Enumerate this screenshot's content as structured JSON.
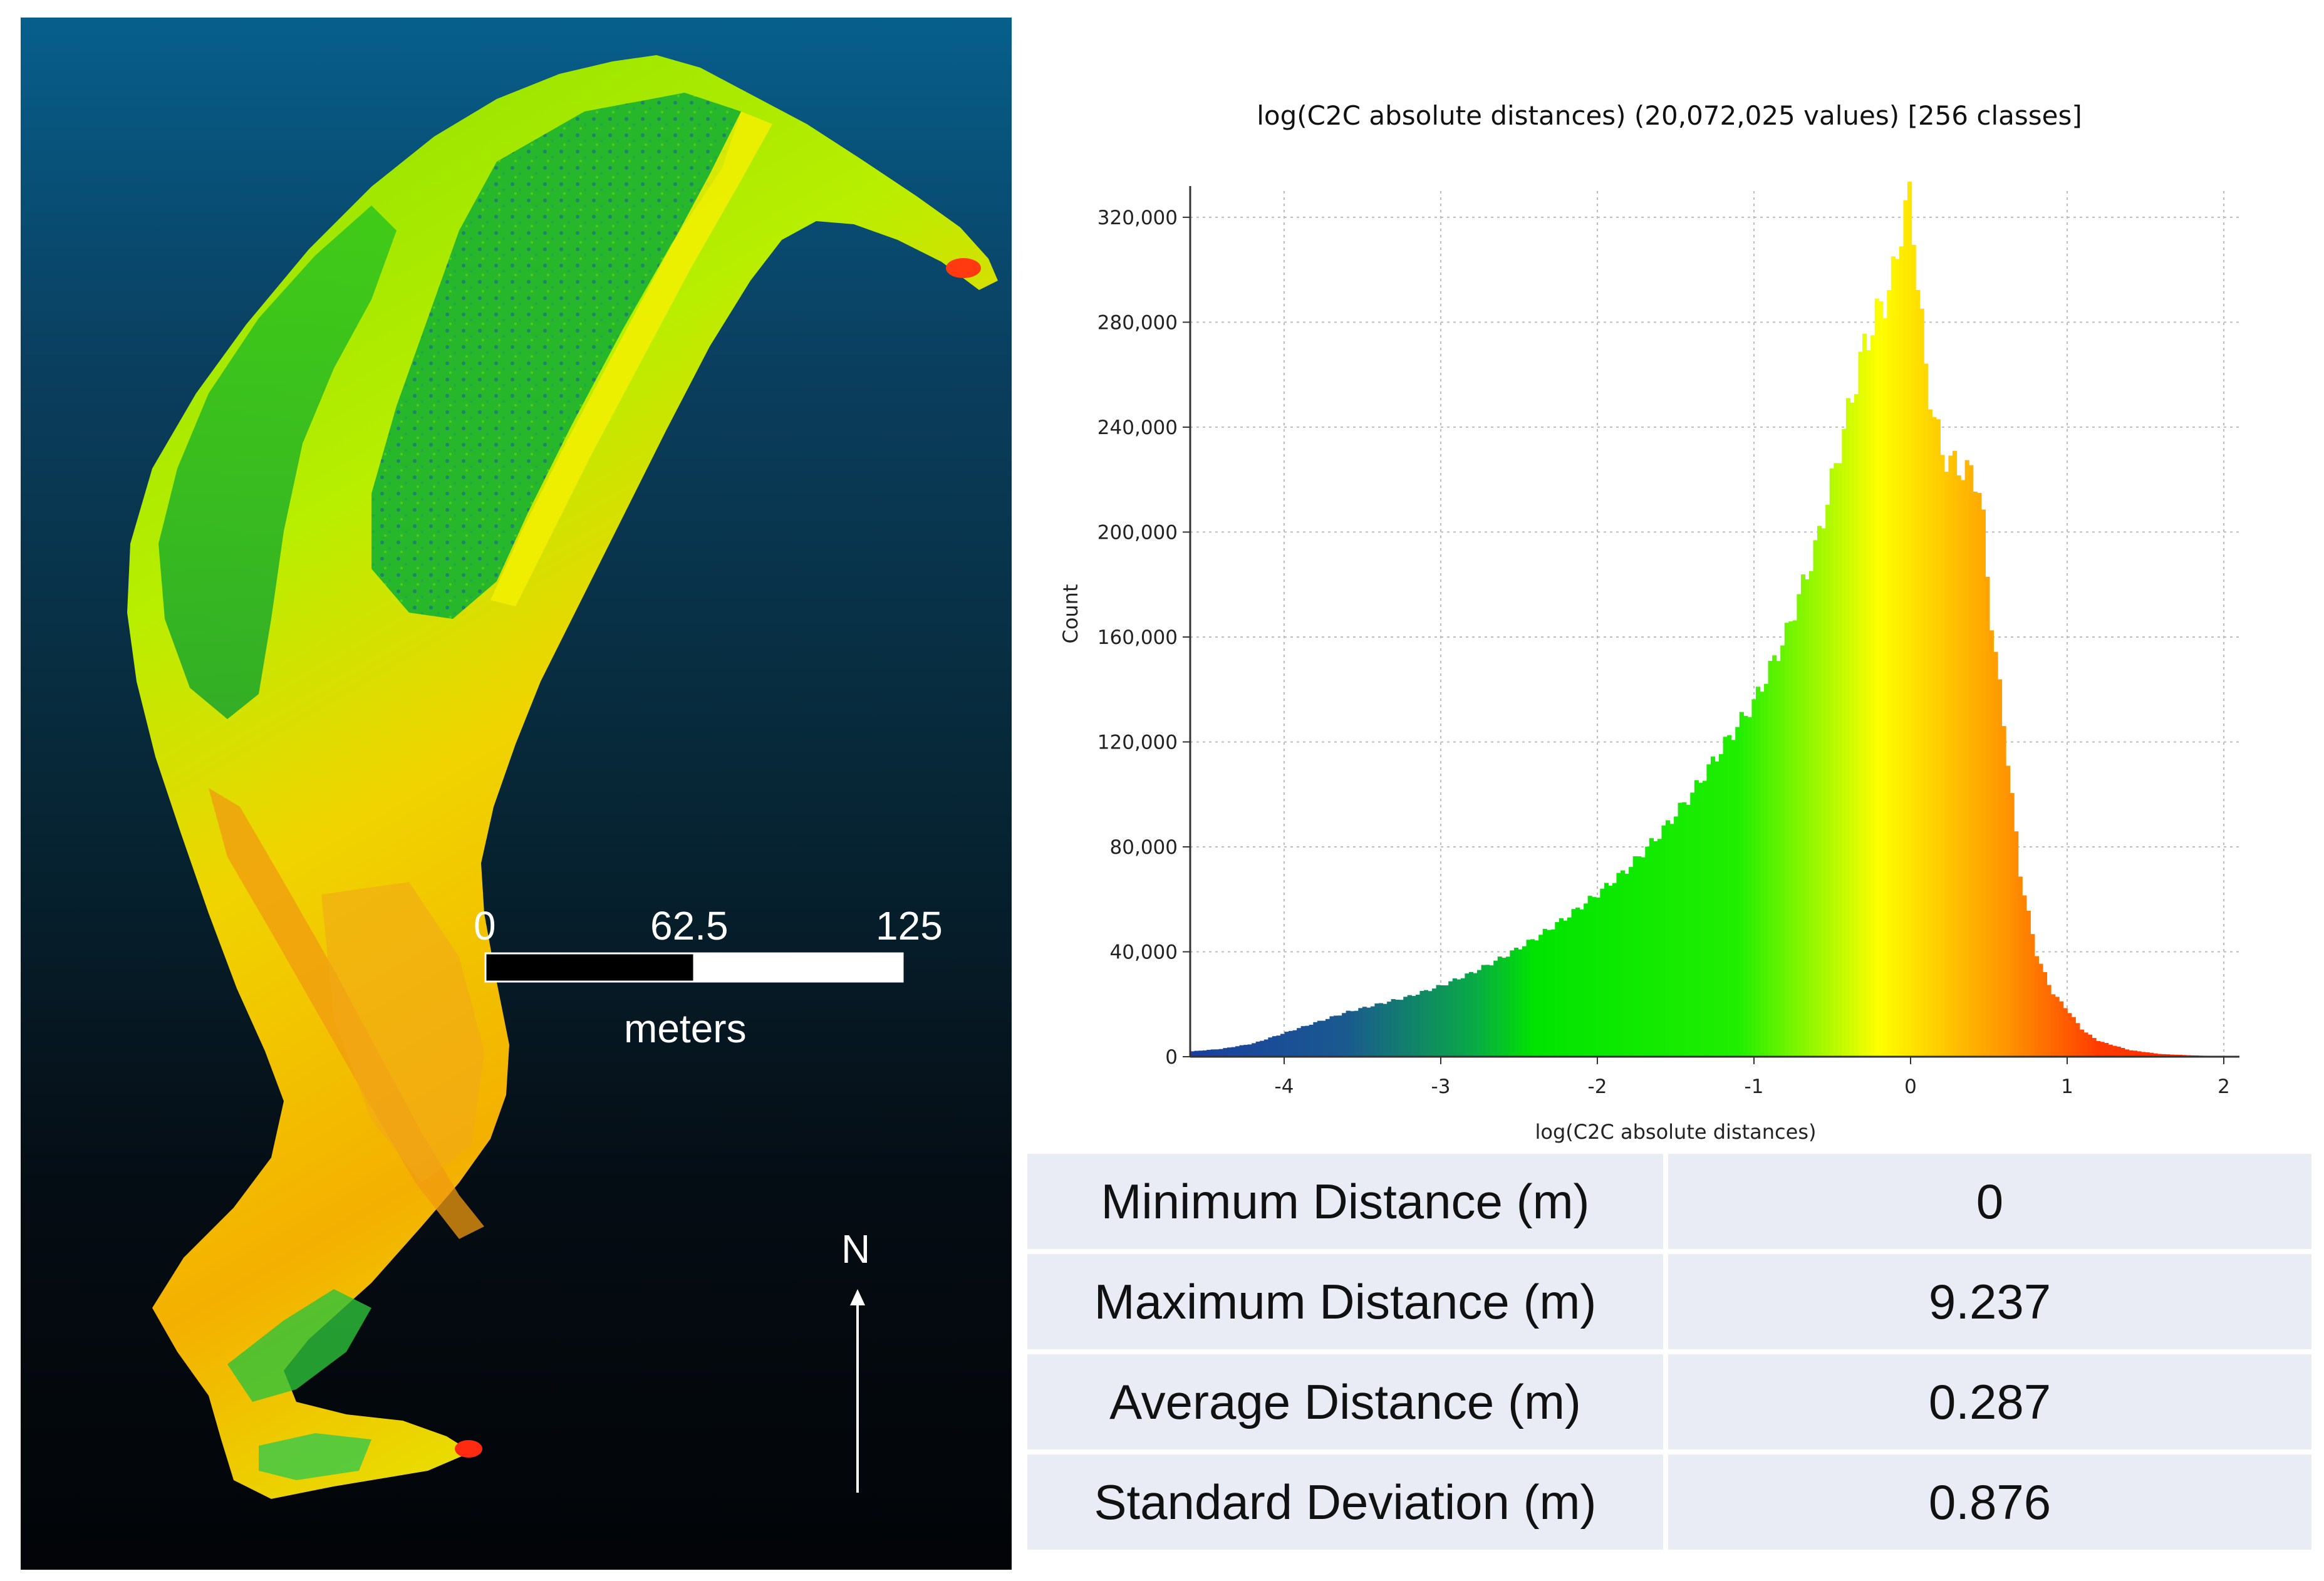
{
  "map": {
    "scale_bar": {
      "start": "0",
      "mid": "62.5",
      "end": "125",
      "unit": "meters"
    },
    "north_label": "N",
    "colors": {
      "background_top": "#075f8c",
      "background_bottom": "#020407"
    }
  },
  "chart_data": {
    "type": "bar",
    "title": "log(C2C absolute distances) (20,072,025 values) [256 classes]",
    "xlabel": "log(C2C absolute distances)",
    "ylabel": "Count",
    "xlim": [
      -4.6,
      2.1
    ],
    "ylim": [
      0,
      330000
    ],
    "x_ticks": [
      -4,
      -3,
      -2,
      -1,
      0,
      1,
      2
    ],
    "x_tick_labels": [
      "-4",
      "-3",
      "-2",
      "-1",
      "0",
      "1",
      "2"
    ],
    "y_ticks": [
      0,
      40000,
      80000,
      120000,
      160000,
      200000,
      240000,
      280000,
      320000
    ],
    "y_tick_labels": [
      "0",
      "40,000",
      "80,000",
      "120,000",
      "160,000",
      "200,000",
      "240,000",
      "280,000",
      "320,000"
    ],
    "grid": true,
    "classes": 256,
    "bin_start": -4.6,
    "bin_end": 2.1,
    "curve_x": [
      -4.6,
      -4.4,
      -4.2,
      -4.0,
      -3.8,
      -3.6,
      -3.4,
      -3.2,
      -3.0,
      -2.8,
      -2.6,
      -2.4,
      -2.2,
      -2.0,
      -1.8,
      -1.6,
      -1.4,
      -1.2,
      -1.0,
      -0.8,
      -0.6,
      -0.4,
      -0.3,
      -0.2,
      -0.15,
      -0.1,
      -0.05,
      0.0,
      0.1,
      0.2,
      0.3,
      0.4,
      0.45,
      0.5,
      0.6,
      0.7,
      0.8,
      0.9,
      1.0,
      1.1,
      1.2,
      1.4,
      1.6,
      1.8,
      2.0,
      2.1
    ],
    "curve_counts": [
      2000,
      3000,
      5000,
      9000,
      13000,
      17000,
      20000,
      23000,
      27000,
      32000,
      38000,
      45000,
      53000,
      62000,
      72000,
      85000,
      100000,
      118000,
      135000,
      160000,
      195000,
      245000,
      270000,
      285000,
      290000,
      300000,
      320000,
      328000,
      260000,
      230000,
      225000,
      222000,
      215000,
      175000,
      125000,
      70000,
      40000,
      25000,
      18000,
      10000,
      6000,
      2500,
      1000,
      500,
      200,
      0
    ],
    "color_stops": [
      {
        "x": -4.6,
        "color": "#1a3fa0"
      },
      {
        "x": -3.6,
        "color": "#1a5a8f"
      },
      {
        "x": -2.8,
        "color": "#0aa848"
      },
      {
        "x": -2.4,
        "color": "#00e400"
      },
      {
        "x": -1.1,
        "color": "#20ee00"
      },
      {
        "x": -0.2,
        "color": "#ffff00"
      },
      {
        "x": 0.6,
        "color": "#ff9600"
      },
      {
        "x": 1.2,
        "color": "#ff3c00"
      },
      {
        "x": 2.1,
        "color": "#ff2000"
      }
    ]
  },
  "stats_table": {
    "rows": [
      {
        "label": "Minimum Distance (m)",
        "value": "0"
      },
      {
        "label": "Maximum Distance (m)",
        "value": "9.237"
      },
      {
        "label": "Average Distance (m)",
        "value": "0.287"
      },
      {
        "label": "Standard Deviation (m)",
        "value": "0.876"
      }
    ]
  }
}
